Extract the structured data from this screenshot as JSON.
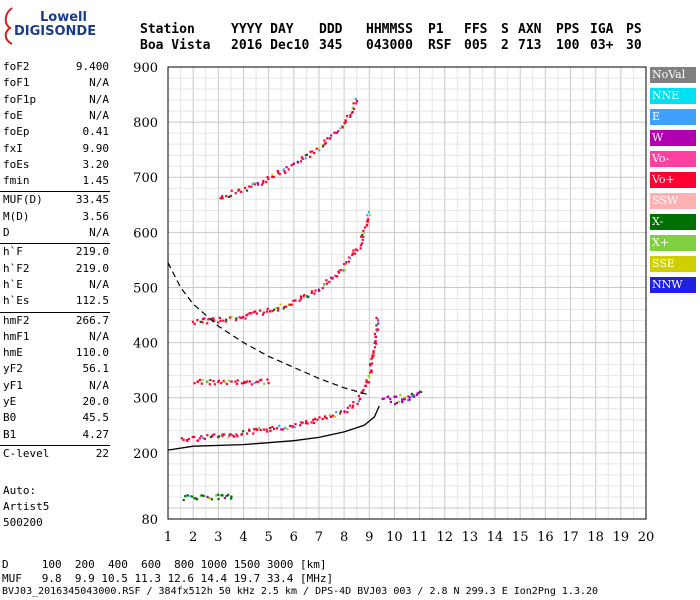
{
  "logo": {
    "line1": "Lowell",
    "line2": "DIGISONDE"
  },
  "header": {
    "labels": {
      "station": "Station",
      "date": "YYYY DAY",
      "ddd": "DDD",
      "hhmmss": "HHMMSS",
      "p1": "P1",
      "ffs": "FFS",
      "s": "S",
      "axn": "AXN",
      "pps": "PPS",
      "iga": "IGA",
      "ps": "PS"
    },
    "values": {
      "station": "Boa Vista",
      "date": "2016 Dec10",
      "ddd": "345",
      "hhmmss": "043000",
      "p1": "RSF",
      "ffs": "005",
      "s": "2",
      "axn": "713",
      "pps": "100",
      "iga": "03+",
      "ps": "30"
    }
  },
  "params": [
    {
      "label": "foF2",
      "value": "9.400"
    },
    {
      "label": "foF1",
      "value": "N/A"
    },
    {
      "label": "foF1p",
      "value": "N/A"
    },
    {
      "label": "foE",
      "value": "N/A"
    },
    {
      "label": "foEp",
      "value": "0.41"
    },
    {
      "label": "fxI",
      "value": "9.90"
    },
    {
      "label": "foEs",
      "value": "3.20"
    },
    {
      "label": "fmin",
      "value": "1.45"
    },
    {
      "label": "MUF(D)",
      "value": "33.45"
    },
    {
      "label": "M(D)",
      "value": "3.56"
    },
    {
      "label": "D",
      "value": "N/A"
    },
    {
      "label": "h`F",
      "value": "219.0"
    },
    {
      "label": "h`F2",
      "value": "219.0"
    },
    {
      "label": "h`E",
      "value": "N/A"
    },
    {
      "label": "h`Es",
      "value": "112.5"
    },
    {
      "label": "hmF2",
      "value": "266.7"
    },
    {
      "label": "hmF1",
      "value": "N/A"
    },
    {
      "label": "hmE",
      "value": "110.0"
    },
    {
      "label": "yF2",
      "value": "56.1"
    },
    {
      "label": "yF1",
      "value": "N/A"
    },
    {
      "label": "yE",
      "value": "20.0"
    },
    {
      "label": "B0",
      "value": "45.5"
    },
    {
      "label": "B1",
      "value": "4.27"
    },
    {
      "label": "C-level",
      "value": "22"
    }
  ],
  "auto_block": {
    "line1": "Auto:",
    "line2": "Artist5",
    "line3": "500200"
  },
  "legend": [
    {
      "label": "NoVal",
      "color": "#808080"
    },
    {
      "label": "NNE",
      "color": "#00e0f0"
    },
    {
      "label": "E",
      "color": "#40a0ff"
    },
    {
      "label": "W",
      "color": "#b000b0"
    },
    {
      "label": "Vo-",
      "color": "#ff40a0"
    },
    {
      "label": "Vo+",
      "color": "#ff0030"
    },
    {
      "label": "SSW",
      "color": "#ffb0b0"
    },
    {
      "label": "X-",
      "color": "#007000"
    },
    {
      "label": "X+",
      "color": "#80d040"
    },
    {
      "label": "SSE",
      "color": "#d0d000"
    },
    {
      "label": "NNW",
      "color": "#2020e0"
    }
  ],
  "footer": {
    "d_row": "D     100  200  400  600  800 1000 1500 3000 [km]",
    "muf_row": "MUF   9.8  9.9 10.5 11.3 12.6 14.4 19.7 33.4 [MHz]",
    "file_row": "BVJ03_2016345043000.RSF / 384fx512h 50 kHz 2.5 km / DPS-4D BVJ03 003 / 2.8 N 299.3 E Ion2Png 1.3.20"
  },
  "chart_data": {
    "type": "scatter",
    "xlim": [
      1,
      20
    ],
    "ylim": [
      80,
      900
    ],
    "x_ticks": [
      1,
      2,
      3,
      4,
      5,
      6,
      7,
      8,
      9,
      10,
      11,
      12,
      13,
      14,
      15,
      16,
      17,
      18,
      19,
      20
    ],
    "y_ticks": [
      80,
      200,
      300,
      400,
      500,
      600,
      700,
      800,
      900
    ],
    "grid": true,
    "traces": [
      {
        "name": "F-layer O trace",
        "color": "#ff0030",
        "points": [
          [
            1.5,
            225
          ],
          [
            2,
            228
          ],
          [
            3,
            232
          ],
          [
            4,
            238
          ],
          [
            5,
            245
          ],
          [
            6,
            252
          ],
          [
            7,
            262
          ],
          [
            8,
            278
          ],
          [
            8.5,
            295
          ],
          [
            8.8,
            320
          ],
          [
            9.0,
            350
          ],
          [
            9.2,
            400
          ],
          [
            9.3,
            450
          ]
        ]
      },
      {
        "name": "F-layer 2nd hop",
        "color": "#ff0030",
        "points": [
          [
            2,
            440
          ],
          [
            3,
            443
          ],
          [
            4,
            450
          ],
          [
            5,
            460
          ],
          [
            6,
            475
          ],
          [
            7,
            500
          ],
          [
            8,
            540
          ],
          [
            8.6,
            580
          ],
          [
            9.0,
            640
          ]
        ]
      },
      {
        "name": "F-layer 3rd hop",
        "color": "#ff0030",
        "points": [
          [
            3,
            665
          ],
          [
            4,
            680
          ],
          [
            5,
            700
          ],
          [
            6,
            725
          ],
          [
            7,
            755
          ],
          [
            8,
            800
          ],
          [
            8.5,
            845
          ]
        ]
      },
      {
        "name": "Es trace",
        "color": "#007000",
        "points": [
          [
            1.6,
            120
          ],
          [
            2,
            121
          ],
          [
            2.5,
            122
          ],
          [
            3,
            122
          ],
          [
            3.6,
            122
          ]
        ]
      },
      {
        "name": "Es 2nd hop",
        "color": "#ff0030",
        "points": [
          [
            2,
            330
          ],
          [
            3,
            330
          ],
          [
            4,
            330
          ],
          [
            5,
            332
          ]
        ]
      },
      {
        "name": "spread cluster",
        "color": "#b000b0",
        "points": [
          [
            9.5,
            300
          ],
          [
            10,
            305
          ],
          [
            10.5,
            300
          ],
          [
            11,
            310
          ],
          [
            9.8,
            290
          ]
        ]
      }
    ],
    "profile_solid": [
      [
        1,
        205
      ],
      [
        2,
        212
      ],
      [
        4,
        215
      ],
      [
        6,
        222
      ],
      [
        7,
        228
      ],
      [
        8,
        238
      ],
      [
        8.8,
        250
      ],
      [
        9.2,
        265
      ],
      [
        9.4,
        285
      ]
    ],
    "profile_dashed": [
      [
        1,
        545
      ],
      [
        1.5,
        500
      ],
      [
        2,
        470
      ],
      [
        3,
        430
      ],
      [
        4,
        400
      ],
      [
        5,
        375
      ],
      [
        6,
        355
      ],
      [
        7,
        335
      ],
      [
        8,
        318
      ],
      [
        9,
        305
      ]
    ]
  }
}
